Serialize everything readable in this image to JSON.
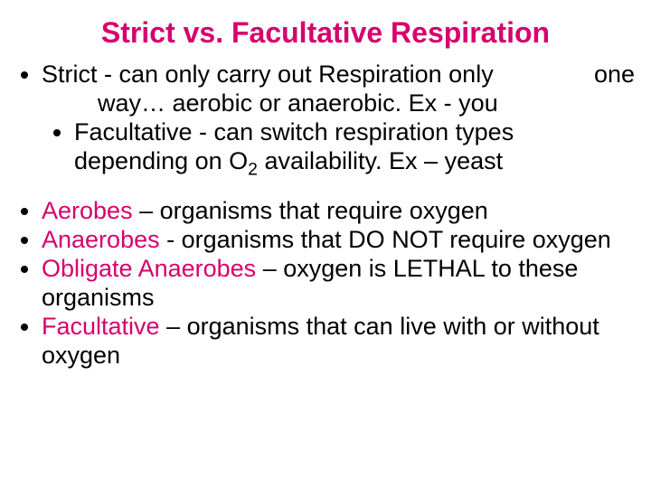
{
  "title": {
    "text": "Strict vs. Facultative Respiration",
    "color": "#d6006c",
    "fontsize": 32
  },
  "section1": {
    "fontsize": 27,
    "color": "#000000",
    "bullets": [
      {
        "line1_a": "Strict - can only carry out Respiration only",
        "line1_b": "one",
        "line2": "way… aerobic or anaerobic. Ex - you",
        "sub": [
          {
            "line1": "Facultative - can switch respiration types",
            "line2_a": "depending on O",
            "line2_sub": "2",
            "line2_b": " availability.  Ex – yeast"
          }
        ]
      }
    ]
  },
  "section2": {
    "fontsize": 27,
    "strong_color": "#d6006c",
    "bullets": [
      {
        "strong": "Aerobes",
        "rest": " – organisms that require oxygen"
      },
      {
        "strong": "Anaerobes",
        "rest": " - organisms that DO NOT require oxygen"
      },
      {
        "strong": "Obligate Anaerobes",
        "rest": " – oxygen is LETHAL to these organisms"
      },
      {
        "strong": " Facultative",
        "rest": " – organisms that can live with or without oxygen"
      }
    ]
  }
}
